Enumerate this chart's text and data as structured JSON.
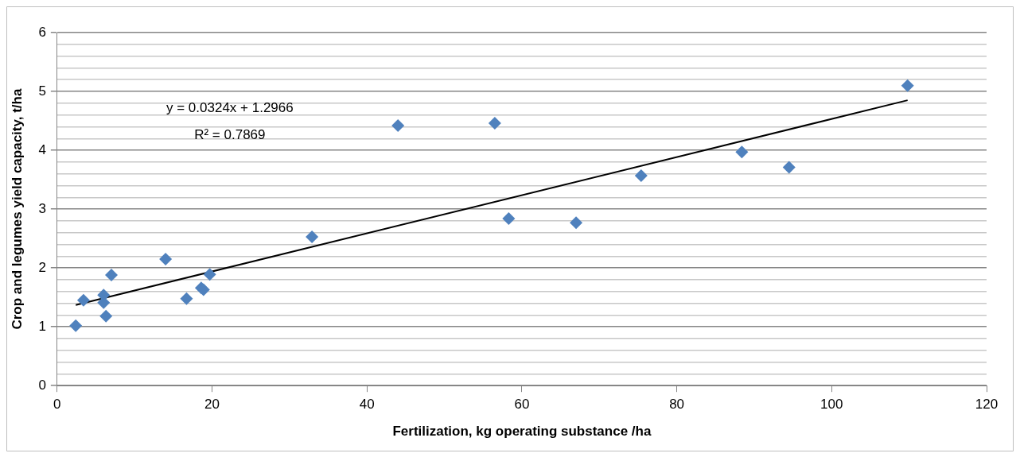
{
  "chart_data": {
    "type": "scatter",
    "xlabel": "Fertilization, kg operating substance /ha",
    "ylabel": "Crop and legumes yield capacity, t/ha",
    "annotations": [
      "y = 0.0324x + 1.2966",
      "R² = 0.7869"
    ],
    "series": [
      {
        "color": "#4f81bd",
        "marker": "diamond",
        "x": [
          2.4,
          3.4,
          6.0,
          6.0,
          6.3,
          7.0,
          14.0,
          16.7,
          18.6,
          18.9,
          19.7,
          32.9,
          44.0,
          56.5,
          58.3,
          67.0,
          75.4,
          88.4,
          94.5,
          109.8
        ],
        "values": [
          1.02,
          1.45,
          1.54,
          1.41,
          1.18,
          1.88,
          2.15,
          1.48,
          1.66,
          1.63,
          1.89,
          2.53,
          4.42,
          4.46,
          2.84,
          2.77,
          3.57,
          3.97,
          3.71,
          5.1
        ]
      },
      {
        "type": "line",
        "color": "#000000",
        "marker": "none",
        "x": [
          2.4,
          109.8
        ],
        "values": [
          1.37,
          4.85
        ]
      }
    ],
    "xlim": [
      0,
      120
    ],
    "xticks": [
      0,
      20,
      40,
      60,
      80,
      100,
      120
    ],
    "ylim": [
      0,
      6
    ],
    "yticks": [
      0,
      {
        "value": 0.2,
        "label": null
      },
      {
        "value": 0.4,
        "label": null
      },
      {
        "value": 0.6,
        "label": null
      },
      {
        "value": 0.8,
        "label": null
      },
      1,
      {
        "value": 1.2,
        "label": null
      },
      {
        "value": 1.4,
        "label": null
      },
      {
        "value": 1.6,
        "label": null
      },
      {
        "value": 1.8,
        "label": null
      },
      2,
      {
        "value": 2.2,
        "label": null
      },
      {
        "value": 2.4,
        "label": null
      },
      {
        "value": 2.6,
        "label": null
      },
      {
        "value": 2.8,
        "label": null
      },
      3,
      {
        "value": 3.2,
        "label": null
      },
      {
        "value": 3.4,
        "label": null
      },
      {
        "value": 3.6,
        "label": null
      },
      {
        "value": 3.8,
        "label": null
      },
      4,
      {
        "value": 4.2,
        "label": null
      },
      {
        "value": 4.4,
        "label": null
      },
      {
        "value": 4.6,
        "label": null
      },
      {
        "value": 4.8,
        "label": null
      },
      5,
      {
        "value": 5.2,
        "label": null
      },
      {
        "value": 5.4,
        "label": null
      },
      {
        "value": 5.6,
        "label": null
      },
      {
        "value": 5.8,
        "label": null
      },
      6
    ],
    "grid": "y",
    "legend": false
  }
}
